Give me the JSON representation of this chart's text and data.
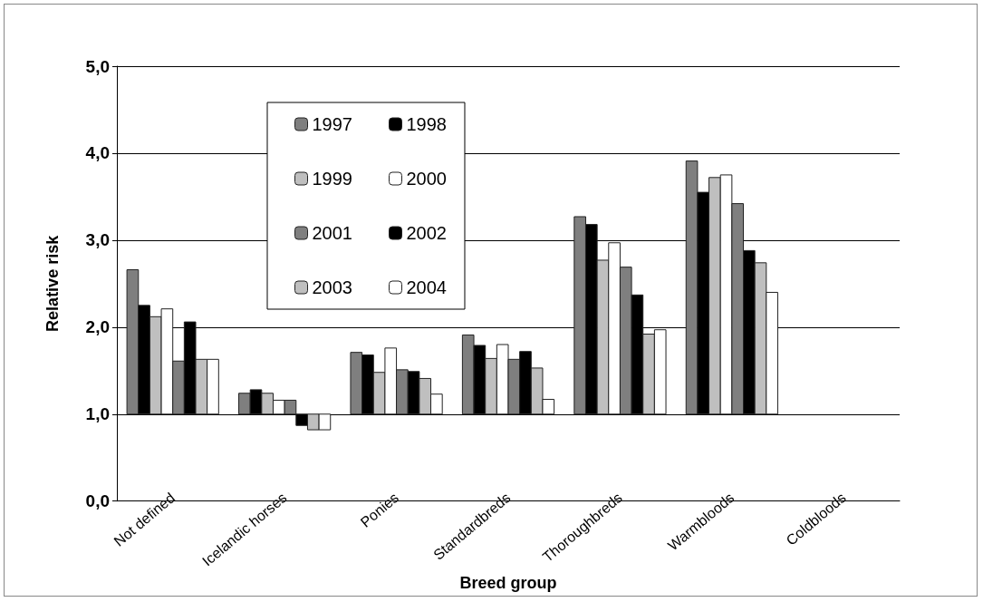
{
  "chart_data": {
    "type": "bar",
    "xlabel": "Breed group",
    "ylabel": "Relative risk",
    "categories": [
      "Not defined",
      "Icelandic horses",
      "Ponies",
      "Standardbreds",
      "Thoroughbreds",
      "Warmbloods",
      "Coldbloods"
    ],
    "series": [
      {
        "name": "1997",
        "color": "#7f7f7f",
        "base": [
          1,
          1,
          1,
          1,
          1,
          1,
          null
        ],
        "values": [
          1.66,
          0.24,
          0.71,
          0.91,
          2.27,
          2.91,
          null
        ]
      },
      {
        "name": "1998",
        "color": "#000000",
        "base": [
          1,
          1,
          1,
          1,
          1,
          1,
          null
        ],
        "values": [
          1.25,
          0.28,
          0.68,
          0.79,
          2.18,
          2.55,
          null
        ]
      },
      {
        "name": "1999",
        "color": "#bfbfbf",
        "base": [
          1,
          1,
          1,
          1,
          1,
          1,
          null
        ],
        "values": [
          1.12,
          0.24,
          0.48,
          0.64,
          1.77,
          2.72,
          null
        ]
      },
      {
        "name": "2000",
        "color": "#ffffff",
        "base": [
          1,
          1,
          1,
          1,
          1,
          1,
          null
        ],
        "values": [
          1.21,
          0.16,
          0.76,
          0.8,
          1.97,
          2.75,
          null
        ]
      },
      {
        "name": "2001",
        "color": "#7f7f7f",
        "base": [
          1,
          1,
          1,
          1,
          1,
          1,
          null
        ],
        "values": [
          0.61,
          0.16,
          0.51,
          0.63,
          1.69,
          2.42,
          null
        ]
      },
      {
        "name": "2002",
        "color": "#000000",
        "base": [
          1,
          1,
          1,
          1,
          1,
          1,
          null
        ],
        "values": [
          1.06,
          -0.13,
          0.49,
          0.72,
          1.37,
          1.88,
          null
        ]
      },
      {
        "name": "2003",
        "color": "#bfbfbf",
        "base": [
          1,
          1,
          1,
          1,
          1,
          1,
          null
        ],
        "values": [
          0.63,
          -0.18,
          0.41,
          0.53,
          0.92,
          1.74,
          null
        ]
      },
      {
        "name": "2004",
        "color": "#ffffff",
        "base": [
          1,
          1,
          1,
          1,
          1,
          1,
          null
        ],
        "values": [
          0.63,
          -0.18,
          0.23,
          0.17,
          0.97,
          1.4,
          null
        ]
      }
    ],
    "ylim": [
      0,
      5
    ],
    "yticks": [
      {
        "value": 0,
        "label": "0,0"
      },
      {
        "value": 1,
        "label": "1,0"
      },
      {
        "value": 2,
        "label": "2,0"
      },
      {
        "value": 3,
        "label": "3,0"
      },
      {
        "value": 4,
        "label": "4,0"
      },
      {
        "value": 5,
        "label": "5,0"
      }
    ],
    "grid": "y",
    "legend": "top left"
  }
}
